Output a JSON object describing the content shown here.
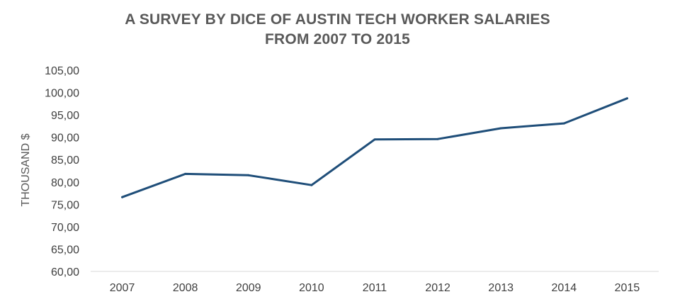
{
  "chart_data": {
    "type": "line",
    "title_lines": [
      "A SURVEY BY DICE OF AUSTIN TECH WORKER SALARIES",
      "FROM 2007 TO 2015"
    ],
    "xlabel": "",
    "ylabel": "THOUSAND $",
    "categories": [
      "2007",
      "2008",
      "2009",
      "2010",
      "2011",
      "2012",
      "2013",
      "2014",
      "2015"
    ],
    "series": [
      {
        "values": [
          76.6,
          81.8,
          81.5,
          79.3,
          89.5,
          89.6,
          92.0,
          93.1,
          98.7
        ],
        "color": "#1F4E79"
      }
    ],
    "ylim": [
      60,
      105
    ],
    "yticks": [
      "60,00",
      "65,00",
      "70,00",
      "75,00",
      "80,00",
      "85,00",
      "90,00",
      "95,00",
      "100,00",
      "105,00"
    ],
    "grid": false,
    "legend": "none"
  }
}
